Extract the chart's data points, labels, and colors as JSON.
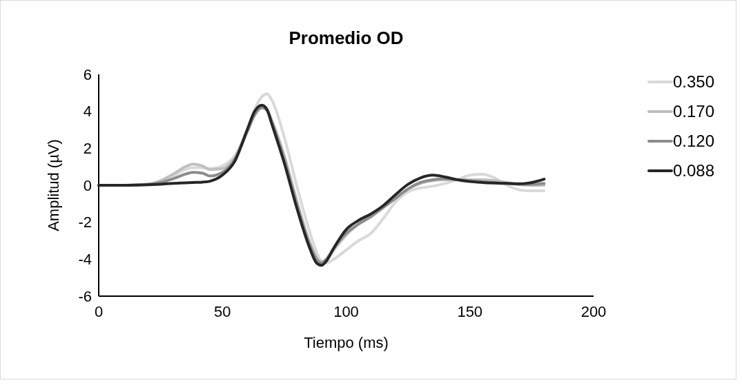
{
  "chart_data": {
    "type": "line",
    "title": "Promedio OD",
    "xlabel": "Tiempo (ms)",
    "ylabel": "Amplitud (µV)",
    "xlim": [
      0,
      200
    ],
    "xticks": [
      0,
      50,
      100,
      150,
      200
    ],
    "ylim": [
      -6,
      6
    ],
    "yticks": [
      -6,
      -4,
      -2,
      0,
      2,
      4,
      6
    ],
    "grid": false,
    "legend": "right",
    "marker": "none",
    "line_style": "solid",
    "x": [
      0,
      10,
      20,
      25,
      30,
      35,
      38,
      42,
      45,
      50,
      55,
      60,
      63,
      66,
      68,
      70,
      75,
      80,
      85,
      88,
      90,
      92,
      95,
      100,
      105,
      110,
      115,
      120,
      125,
      130,
      135,
      140,
      145,
      150,
      155,
      160,
      165,
      170,
      175,
      180
    ],
    "series": [
      {
        "name": "0.350",
        "color": "#d9d9d9",
        "values": [
          0,
          0,
          0.05,
          0.2,
          0.5,
          0.85,
          0.95,
          0.95,
          0.9,
          1.05,
          1.6,
          3.0,
          4.1,
          4.8,
          4.95,
          4.6,
          2.6,
          0.0,
          -2.4,
          -3.6,
          -4.1,
          -4.2,
          -4.0,
          -3.5,
          -3.0,
          -2.6,
          -1.8,
          -0.9,
          -0.35,
          -0.15,
          -0.05,
          0.1,
          0.3,
          0.55,
          0.6,
          0.4,
          0.0,
          -0.25,
          -0.3,
          -0.3
        ]
      },
      {
        "name": "0.170",
        "color": "#bfbfbf",
        "values": [
          0,
          0,
          0.07,
          0.25,
          0.6,
          1.0,
          1.15,
          1.05,
          0.85,
          0.9,
          1.5,
          2.9,
          3.8,
          4.2,
          4.1,
          3.5,
          1.6,
          -0.8,
          -3.0,
          -3.9,
          -4.15,
          -4.0,
          -3.5,
          -2.7,
          -2.1,
          -1.7,
          -1.2,
          -0.7,
          -0.2,
          0.1,
          0.25,
          0.3,
          0.3,
          0.3,
          0.3,
          0.25,
          0.15,
          0.05,
          0.0,
          0.0
        ]
      },
      {
        "name": "0.120",
        "color": "#8c8c8c",
        "values": [
          0,
          0,
          0.05,
          0.15,
          0.35,
          0.6,
          0.7,
          0.65,
          0.5,
          0.7,
          1.4,
          2.9,
          3.8,
          4.2,
          4.05,
          3.4,
          1.4,
          -1.0,
          -3.1,
          -4.0,
          -4.2,
          -4.0,
          -3.4,
          -2.6,
          -2.1,
          -1.7,
          -1.2,
          -0.7,
          -0.2,
          0.15,
          0.3,
          0.35,
          0.3,
          0.25,
          0.2,
          0.15,
          0.1,
          0.05,
          0.05,
          0.1
        ]
      },
      {
        "name": "0.088",
        "color": "#262626",
        "values": [
          0,
          0,
          0.03,
          0.06,
          0.1,
          0.13,
          0.15,
          0.17,
          0.22,
          0.55,
          1.3,
          3.0,
          4.0,
          4.33,
          4.1,
          3.3,
          1.2,
          -1.2,
          -3.3,
          -4.2,
          -4.33,
          -4.1,
          -3.4,
          -2.4,
          -1.9,
          -1.55,
          -1.1,
          -0.5,
          0.05,
          0.4,
          0.55,
          0.45,
          0.3,
          0.2,
          0.15,
          0.12,
          0.1,
          0.08,
          0.15,
          0.33
        ]
      }
    ]
  }
}
